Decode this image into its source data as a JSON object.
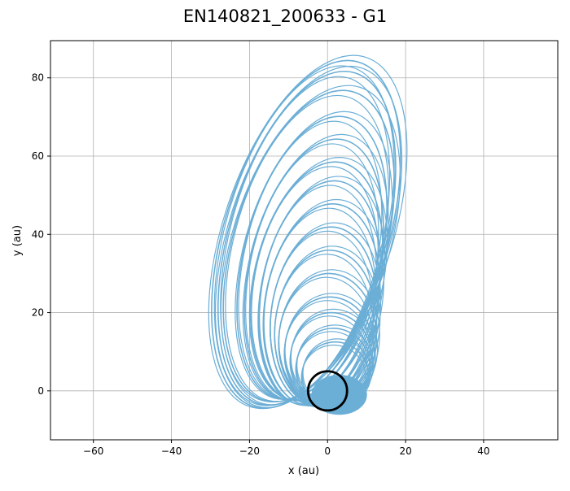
{
  "chart_data": {
    "type": "line",
    "title": "EN140821_200633 - G1",
    "xlabel": "x (au)",
    "ylabel": "y (au)",
    "xlim": [
      -71,
      59
    ],
    "ylim": [
      -12.5,
      89.5
    ],
    "xticks": [
      -60,
      -40,
      -20,
      0,
      20,
      40
    ],
    "yticks": [
      0,
      20,
      40,
      60,
      80
    ],
    "grid": true,
    "colors": {
      "orbit": "#6baed6",
      "body": "#000000",
      "grid": "#b0b0b0"
    },
    "series": [
      {
        "style": "precessing-elliptical-orbits",
        "pivot": [
          0,
          0
        ],
        "orbits": [
          {
            "cx": -5.5,
            "cy": 40,
            "a": 46,
            "b": 21,
            "angle": 17
          },
          {
            "cx": -5.3,
            "cy": 39,
            "a": 44,
            "b": 20,
            "angle": 16
          },
          {
            "cx": -4.8,
            "cy": 37,
            "a": 41,
            "b": 19.5,
            "angle": 16
          },
          {
            "cx": -4.0,
            "cy": 34,
            "a": 37,
            "b": 17.5,
            "angle": 14
          },
          {
            "cx": -3.5,
            "cy": 31,
            "a": 34,
            "b": 16.5,
            "angle": 13
          },
          {
            "cx": -2.8,
            "cy": 28,
            "a": 31,
            "b": 16,
            "angle": 12
          },
          {
            "cx": -2.0,
            "cy": 25,
            "a": 29,
            "b": 15,
            "angle": 10
          },
          {
            "cx": -1.5,
            "cy": 22,
            "a": 26,
            "b": 14.5,
            "angle": 9
          },
          {
            "cx": -1.0,
            "cy": 19,
            "a": 23,
            "b": 13.5,
            "angle": 7
          },
          {
            "cx": -0.5,
            "cy": 16,
            "a": 20,
            "b": 13,
            "angle": 5
          },
          {
            "cx": 0.0,
            "cy": 13,
            "a": 17,
            "b": 12.5,
            "angle": 3
          },
          {
            "cx": 0.5,
            "cy": 10,
            "a": 14,
            "b": 11.5,
            "angle": 1
          },
          {
            "cx": 1.0,
            "cy": 8,
            "a": 12,
            "b": 10.5,
            "angle": -1
          },
          {
            "cx": 1.5,
            "cy": 6,
            "a": 10,
            "b": 9.5,
            "angle": -3
          },
          {
            "cx": 2.0,
            "cy": 4,
            "a": 8.5,
            "b": 8.5,
            "angle": 0
          }
        ]
      },
      {
        "style": "circular-orbit",
        "cx": 0,
        "cy": 0,
        "r": 5
      }
    ]
  }
}
